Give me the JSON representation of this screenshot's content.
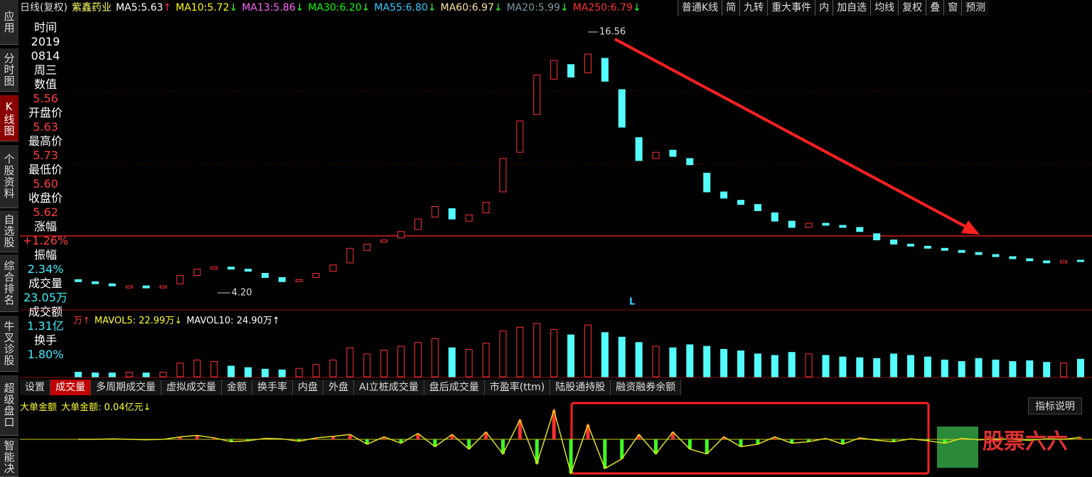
{
  "sidebar": [
    "应用",
    "分时图",
    "K线图",
    "个股资料",
    "自选股",
    "综合排名",
    "牛叉诊股",
    "超级盘口",
    "智能决"
  ],
  "header": {
    "period": "日线(复权)",
    "stock": "紫鑫药业",
    "ma": [
      {
        "name": "MA5:",
        "value": "5.63",
        "arrow": "↑",
        "color": "#ffffff"
      },
      {
        "name": "MA10:",
        "value": "5.72",
        "arrow": "↓",
        "color": "#ffff00"
      },
      {
        "name": "MA13:",
        "value": "5.86",
        "arrow": "↓",
        "color": "#ff66ff"
      },
      {
        "name": "MA30:",
        "value": "6.20",
        "arrow": "↓",
        "color": "#00ff00"
      },
      {
        "name": "MA55:",
        "value": "6.80",
        "arrow": "↓",
        "color": "#33ccff"
      },
      {
        "name": "MA60:",
        "value": "6.97",
        "arrow": "↓",
        "color": "#ffe0a0"
      },
      {
        "name": "MA20:",
        "value": "5.99",
        "arrow": "↓",
        "color": "#7a9aa0"
      },
      {
        "name": "MA250:",
        "value": "6.79",
        "arrow": "↓",
        "color": "#ff3333"
      }
    ]
  },
  "toolbar": [
    "普通K线",
    "简",
    "九转",
    "重大事件",
    "内",
    "加自选",
    "均线",
    "复权",
    "叠",
    "窗",
    "预测"
  ],
  "info": [
    {
      "label": "时间",
      "values": [
        "2019",
        "0814",
        "周三"
      ]
    },
    {
      "label": "数值",
      "values": [
        "5.56"
      ]
    },
    {
      "label": "开盘价",
      "values": [
        "5.63"
      ]
    },
    {
      "label": "最高价",
      "values": [
        "5.73"
      ]
    },
    {
      "label": "最低价",
      "values": [
        "5.60"
      ]
    },
    {
      "label": "收盘价",
      "values": [
        "5.62"
      ]
    },
    {
      "label": "涨幅",
      "values": [
        "+1.26%"
      ]
    },
    {
      "label": "振幅",
      "values": [
        "2.34%"
      ]
    },
    {
      "label": "成交量",
      "values": [
        "23.05万"
      ]
    },
    {
      "label": "成交额",
      "values": [
        "1.31亿"
      ]
    },
    {
      "label": "换手",
      "values": [
        "1.80%"
      ]
    }
  ],
  "price_chart": {
    "high_label": 16.56,
    "low_label": {
      "value": 4.2,
      "label": "4.20"
    },
    "marker": "L",
    "open": [
      4.7,
      4.6,
      4.5,
      4.3,
      4.4,
      4.3,
      4.5,
      4.9,
      5.2,
      5.3,
      5.2,
      5.0,
      4.8,
      4.6,
      4.8,
      5.1,
      5.5,
      6.1,
      6.5,
      6.7,
      7.1,
      7.7,
      8.1,
      7.5,
      7.9,
      8.9,
      10.8,
      12.6,
      14.3,
      15.0,
      14.6,
      15.3,
      13.8,
      11.5,
      10.5,
      10.9,
      10.5,
      9.8,
      8.9,
      8.5,
      8.3,
      7.9,
      7.5,
      7.2,
      7.4,
      7.3,
      7.2,
      6.9,
      6.6,
      6.4,
      6.3,
      6.2,
      6.1,
      6.0,
      5.9,
      5.8,
      5.7,
      5.6,
      5.5,
      5.63
    ],
    "close": [
      4.6,
      4.5,
      4.4,
      4.4,
      4.3,
      4.4,
      4.9,
      5.2,
      5.3,
      5.2,
      5.1,
      4.8,
      4.6,
      4.7,
      5.0,
      5.4,
      6.2,
      6.4,
      6.6,
      7.0,
      7.6,
      8.2,
      7.6,
      7.8,
      8.4,
      10.5,
      12.3,
      14.5,
      15.2,
      14.4,
      15.5,
      14.2,
      12.0,
      10.4,
      10.8,
      10.6,
      10.2,
      8.9,
      8.6,
      8.3,
      8.0,
      7.5,
      7.2,
      7.4,
      7.3,
      7.2,
      7.0,
      6.6,
      6.4,
      6.3,
      6.2,
      6.1,
      6.0,
      5.9,
      5.8,
      5.7,
      5.6,
      5.5,
      5.6,
      5.62
    ]
  },
  "volume": {
    "labels": [
      "万↑",
      "MAVOL5: 22.99万↓",
      "MAVOL10: 24.90万↑"
    ],
    "values": [
      6,
      5,
      5,
      6,
      5,
      6,
      18,
      22,
      20,
      14,
      12,
      10,
      9,
      11,
      16,
      22,
      38,
      30,
      35,
      40,
      45,
      50,
      38,
      36,
      44,
      60,
      65,
      70,
      62,
      55,
      68,
      58,
      52,
      45,
      40,
      38,
      42,
      40,
      36,
      34,
      30,
      28,
      32,
      30,
      28,
      26,
      25,
      24,
      30,
      28,
      26,
      22,
      20,
      24,
      22,
      20,
      21,
      19,
      18,
      23.05
    ]
  },
  "tabs": [
    "设置",
    "成交量",
    "多周期成交量",
    "虚拟成交量",
    "金额",
    "换手率",
    "内盘",
    "外盘",
    "AI立桩成交量",
    "盘后成交量",
    "市盈率(ttm)",
    "陆股通持股",
    "融资融券余额"
  ],
  "indicator": {
    "title": "大单金额",
    "label": "大单金额: 0.04亿元↓",
    "help": "指标说明",
    "values": [
      0,
      0,
      0.01,
      0,
      -0.01,
      0,
      0.05,
      0.08,
      0.03,
      -0.05,
      -0.03,
      0.02,
      0.01,
      -0.04,
      0.03,
      0.06,
      0.1,
      -0.1,
      0.05,
      -0.08,
      0.12,
      -0.15,
      0.1,
      -0.2,
      0.15,
      -0.3,
      0.4,
      -0.5,
      0.6,
      -0.7,
      0.3,
      -0.6,
      -0.4,
      0.1,
      -0.3,
      0.15,
      -0.2,
      -0.3,
      0.05,
      -0.15,
      -0.1,
      0.05,
      -0.08,
      -0.05,
      0.02,
      -0.1,
      0.03,
      -0.02,
      -0.05,
      0.01,
      -0.03,
      -0.08,
      0.02,
      -0.01,
      0.01,
      0,
      -0.02,
      0.01,
      0,
      0.04
    ]
  },
  "watermark": "股票六六"
}
